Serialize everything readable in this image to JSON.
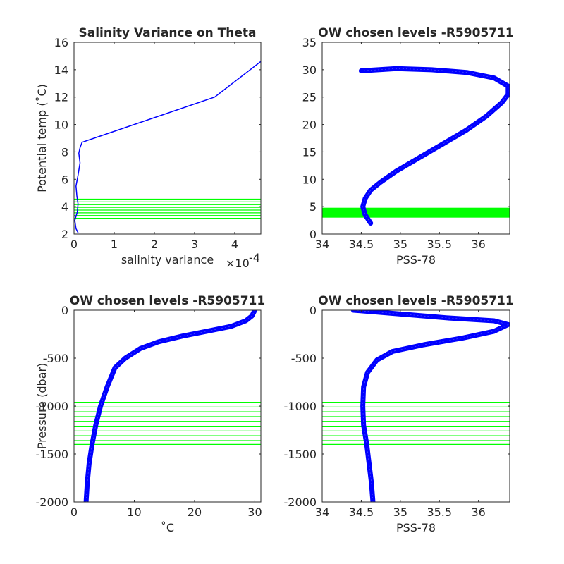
{
  "chart_data": [
    {
      "type": "line",
      "title": "Salinity Variance on Theta",
      "xlabel": "salinity variance",
      "xexponent": "×10",
      "xexponent_power": "-4",
      "ylabel": "Potential temp (˚C)",
      "xlim": [
        0,
        4.65
      ],
      "ylim": [
        2,
        16
      ],
      "xticks": [
        0,
        1,
        2,
        3,
        4
      ],
      "yticks": [
        2,
        4,
        6,
        8,
        10,
        12,
        14,
        16
      ],
      "series": [
        {
          "color": "#0000ff",
          "x": [
            0.1,
            0.05,
            0.02,
            0.08,
            0.1,
            0.07,
            0.05,
            0.1,
            0.15,
            0.12,
            0.15,
            0.2,
            3.5,
            4.65
          ],
          "y": [
            2.1,
            2.4,
            3.0,
            3.6,
            4.2,
            4.8,
            5.5,
            6.3,
            7.2,
            7.9,
            8.3,
            8.7,
            12.0,
            14.6
          ]
        }
      ],
      "reference_lines": {
        "axis": "y",
        "color": "#00ff00",
        "values": [
          3.15,
          3.35,
          3.55,
          3.75,
          3.95,
          4.15,
          4.35,
          4.55
        ]
      }
    },
    {
      "type": "line",
      "title": "OW chosen levels -R5905711",
      "xlabel": "PSS-78",
      "ylabel": "",
      "xlim": [
        34,
        36.4
      ],
      "ylim": [
        0,
        35
      ],
      "xticks": [
        "34",
        "34.5",
        "35",
        "35.5",
        "36"
      ],
      "yticks": [
        0,
        5,
        10,
        15,
        20,
        25,
        30,
        35
      ],
      "series": [
        {
          "color": "#0000ff",
          "x": [
            34.62,
            34.55,
            34.52,
            34.55,
            34.62,
            34.75,
            34.95,
            35.25,
            35.55,
            35.85,
            36.1,
            36.3,
            36.38,
            36.38,
            36.2,
            35.85,
            35.4,
            34.95,
            34.5
          ],
          "y": [
            2,
            3.5,
            5,
            6.5,
            8,
            9.5,
            11.5,
            14,
            16.5,
            19,
            21.5,
            24,
            25.5,
            27,
            28.5,
            29.5,
            30,
            30.2,
            29.8
          ]
        }
      ],
      "band": {
        "color": "#00ff00",
        "from": 3.0,
        "to": 4.8
      }
    },
    {
      "type": "line",
      "title": "OW chosen levels -R5905711",
      "xlabel": "˚C",
      "ylabel": "Pressure (dbar)",
      "xlim": [
        0,
        31
      ],
      "ylim": [
        -2000,
        0
      ],
      "xticks": [
        0,
        10,
        20,
        30
      ],
      "yticks": [
        -2000,
        -1500,
        -1000,
        -500,
        0
      ],
      "series": [
        {
          "color": "#0000ff",
          "x": [
            2.0,
            2.2,
            2.5,
            3.0,
            3.6,
            4.4,
            5.5,
            6.8,
            8.5,
            11,
            14,
            18,
            22,
            26,
            28.5,
            29.5,
            30
          ],
          "y": [
            -2000,
            -1800,
            -1600,
            -1400,
            -1200,
            -1000,
            -800,
            -600,
            -500,
            -400,
            -330,
            -270,
            -220,
            -170,
            -110,
            -60,
            0
          ]
        }
      ],
      "reference_lines": {
        "axis": "y",
        "color": "#00ff00",
        "values": [
          -960,
          -1010,
          -1060,
          -1110,
          -1160,
          -1210,
          -1260,
          -1310,
          -1360,
          -1400
        ]
      }
    },
    {
      "type": "line",
      "title": "OW chosen levels -R5905711",
      "xlabel": "PSS-78",
      "ylabel": "",
      "xlim": [
        34,
        36.4
      ],
      "ylim": [
        -2000,
        0
      ],
      "xticks": [
        "34",
        "34.5",
        "35",
        "35.5",
        "36"
      ],
      "yticks": [
        -2000,
        -1500,
        -1000,
        -500,
        0
      ],
      "series": [
        {
          "color": "#0000ff",
          "x": [
            34.65,
            34.63,
            34.6,
            34.57,
            34.53,
            34.52,
            34.53,
            34.58,
            34.7,
            34.9,
            35.3,
            35.8,
            36.2,
            36.38,
            36.2,
            35.6,
            35.0,
            34.4
          ],
          "y": [
            -2000,
            -1800,
            -1600,
            -1400,
            -1200,
            -1000,
            -800,
            -650,
            -520,
            -430,
            -360,
            -290,
            -220,
            -150,
            -110,
            -80,
            -40,
            0
          ]
        }
      ],
      "reference_lines": {
        "axis": "y",
        "color": "#00ff00",
        "values": [
          -960,
          -1010,
          -1060,
          -1110,
          -1160,
          -1210,
          -1260,
          -1310,
          -1360,
          -1400
        ]
      }
    }
  ]
}
